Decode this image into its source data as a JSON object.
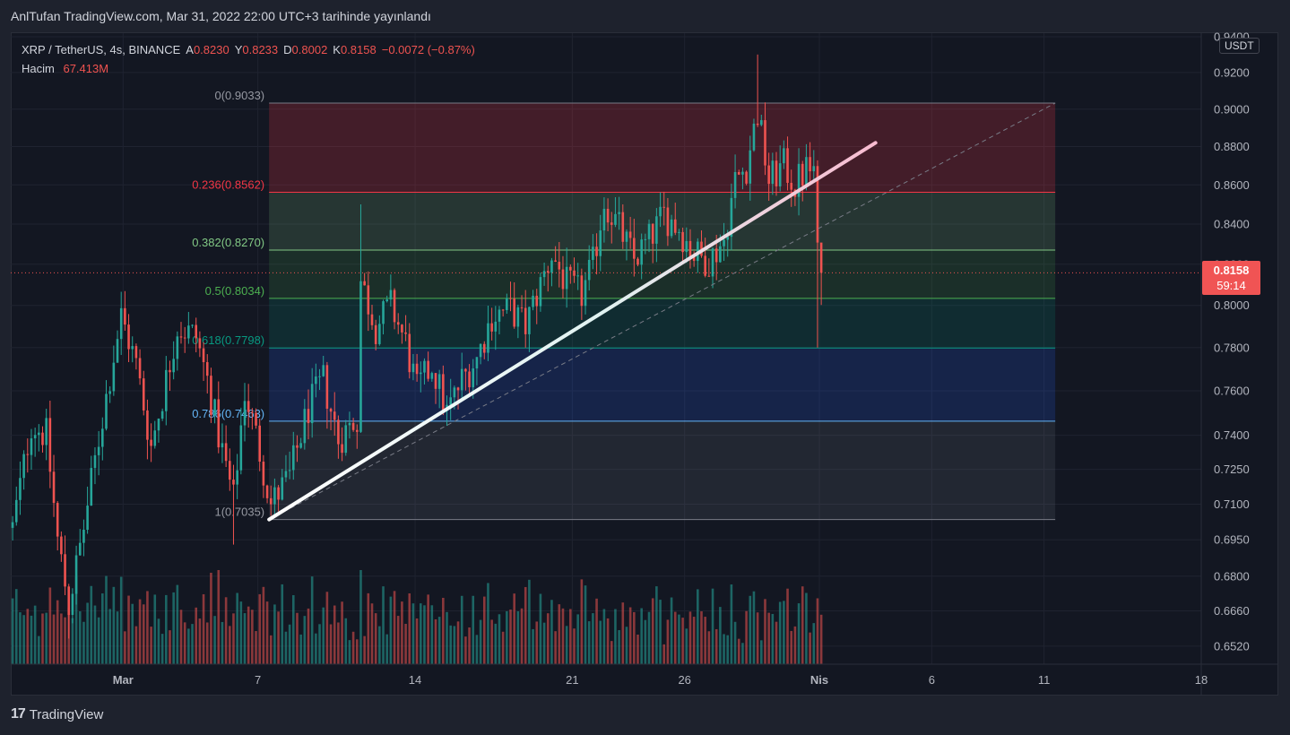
{
  "header": {
    "title": "AnlTufan TradingView.com, Mar 31, 2022 22:00 UTC+3 tarihinde yayınlandı"
  },
  "legend": {
    "symbol": "XRP / TetherUS, 4s, BINANCE",
    "open_label": "A",
    "open": "0.8230",
    "high_label": "Y",
    "high": "0.8233",
    "low_label": "D",
    "low": "0.8002",
    "close_label": "K",
    "close": "0.8158",
    "change": "−0.0072 (−0.87%)",
    "volume_label": "Hacim",
    "volume": "67.413M"
  },
  "currency_badge": "USDT",
  "last_price": {
    "price": "0.8158",
    "countdown": "59:14"
  },
  "footer": {
    "brand": "TradingView"
  },
  "colors": {
    "up": "#26a69a",
    "down": "#ef5350",
    "background": "#131722",
    "frame": "#1e222d"
  },
  "chart_data": {
    "type": "candlestick",
    "title": "XRP / TetherUS, 4s, BINANCE",
    "y_axis_ticks": [
      "0.9400",
      "0.9200",
      "0.9000",
      "0.8800",
      "0.8600",
      "0.8400",
      "0.8200",
      "0.8000",
      "0.7800",
      "0.7600",
      "0.7400",
      "0.7250",
      "0.7100",
      "0.6950",
      "0.6800",
      "0.6660",
      "0.6520"
    ],
    "y_axis_scale": "log",
    "ylim": [
      0.645,
      0.942
    ],
    "x_axis_ticks": [
      "Mar",
      "7",
      "14",
      "21",
      "26",
      "Nis",
      "6",
      "11",
      "18"
    ],
    "x_range": [
      "2022-02-24",
      "2022-04-18"
    ],
    "fibonacci_levels": [
      {
        "label": "0(0.9033)",
        "ratio": 0,
        "price": 0.9033
      },
      {
        "label": "0.236(0.8562)",
        "ratio": 0.236,
        "price": 0.8562
      },
      {
        "label": "0.382(0.8270)",
        "ratio": 0.382,
        "price": 0.827
      },
      {
        "label": "0.5(0.8034)",
        "ratio": 0.5,
        "price": 0.8034
      },
      {
        "label": "0.618(0.7798)",
        "ratio": 0.618,
        "price": 0.7798
      },
      {
        "label": "0.786(0.7463)",
        "ratio": 0.786,
        "price": 0.7463
      },
      {
        "label": "1(0.7035)",
        "ratio": 1,
        "price": 0.7035
      }
    ],
    "fib_x_range": [
      "2022-03-07 12:00",
      "2022-04-11 12:00"
    ],
    "trendline": {
      "from": [
        "2022-03-07 12:00",
        0.7035
      ],
      "to": [
        "2022-04-03 12:00",
        0.882
      ]
    },
    "dashed_diagonal": {
      "from": [
        "2022-03-07 12:00",
        0.7035
      ],
      "to": [
        "2022-04-11 12:00",
        0.9033
      ]
    },
    "last_close": 0.8158,
    "ohlc_keypoints": [
      {
        "t": "2022-02-24 00:00",
        "c": 0.7
      },
      {
        "t": "2022-02-24 20:00",
        "c": 0.745
      },
      {
        "t": "2022-02-25 12:00",
        "c": 0.74
      },
      {
        "t": "2022-02-26 00:00",
        "c": 0.695
      },
      {
        "t": "2022-02-26 12:00",
        "c": 0.668
      },
      {
        "t": "2022-02-27 04:00",
        "c": 0.7
      },
      {
        "t": "2022-02-28 00:00",
        "c": 0.748
      },
      {
        "t": "2022-02-28 20:00",
        "c": 0.795
      },
      {
        "t": "2022-03-01 12:00",
        "c": 0.772
      },
      {
        "t": "2022-03-02 04:00",
        "c": 0.735
      },
      {
        "t": "2022-03-02 20:00",
        "c": 0.765
      },
      {
        "t": "2022-03-03 08:00",
        "c": 0.79
      },
      {
        "t": "2022-03-04 04:00",
        "c": 0.785
      },
      {
        "t": "2022-03-04 16:00",
        "c": 0.765
      },
      {
        "t": "2022-03-05 04:00",
        "c": 0.74
      },
      {
        "t": "2022-03-05 20:00",
        "c": 0.712
      },
      {
        "t": "2022-03-06 08:00",
        "c": 0.76
      },
      {
        "t": "2022-03-06 20:00",
        "c": 0.74
      },
      {
        "t": "2022-03-07 12:00",
        "c": 0.71
      },
      {
        "t": "2022-03-08 08:00",
        "c": 0.722
      },
      {
        "t": "2022-03-09 04:00",
        "c": 0.752
      },
      {
        "t": "2022-03-09 20:00",
        "c": 0.765
      },
      {
        "t": "2022-03-10 12:00",
        "c": 0.738
      },
      {
        "t": "2022-03-11 08:00",
        "c": 0.748
      },
      {
        "t": "2022-03-11 12:00",
        "c": 0.812
      },
      {
        "t": "2022-03-12 04:00",
        "c": 0.79
      },
      {
        "t": "2022-03-12 20:00",
        "c": 0.8
      },
      {
        "t": "2022-03-13 12:00",
        "c": 0.782
      },
      {
        "t": "2022-03-14 00:00",
        "c": 0.76
      },
      {
        "t": "2022-03-14 16:00",
        "c": 0.772
      },
      {
        "t": "2022-03-15 08:00",
        "c": 0.75
      },
      {
        "t": "2022-03-16 00:00",
        "c": 0.765
      },
      {
        "t": "2022-03-16 16:00",
        "c": 0.775
      },
      {
        "t": "2022-03-17 08:00",
        "c": 0.795
      },
      {
        "t": "2022-03-18 04:00",
        "c": 0.798
      },
      {
        "t": "2022-03-18 20:00",
        "c": 0.79
      },
      {
        "t": "2022-03-19 12:00",
        "c": 0.81
      },
      {
        "t": "2022-03-20 00:00",
        "c": 0.825
      },
      {
        "t": "2022-03-20 16:00",
        "c": 0.81
      },
      {
        "t": "2022-03-21 08:00",
        "c": 0.805
      },
      {
        "t": "2022-03-21 20:00",
        "c": 0.82
      },
      {
        "t": "2022-03-22 08:00",
        "c": 0.852
      },
      {
        "t": "2022-03-23 00:00",
        "c": 0.838
      },
      {
        "t": "2022-03-23 16:00",
        "c": 0.822
      },
      {
        "t": "2022-03-24 08:00",
        "c": 0.832
      },
      {
        "t": "2022-03-25 00:00",
        "c": 0.845
      },
      {
        "t": "2022-03-25 16:00",
        "c": 0.838
      },
      {
        "t": "2022-03-26 08:00",
        "c": 0.825
      },
      {
        "t": "2022-03-27 00:00",
        "c": 0.822
      },
      {
        "t": "2022-03-27 16:00",
        "c": 0.832
      },
      {
        "t": "2022-03-28 04:00",
        "c": 0.862
      },
      {
        "t": "2022-03-28 16:00",
        "c": 0.87
      },
      {
        "t": "2022-03-29 04:00",
        "c": 0.898
      },
      {
        "t": "2022-03-29 16:00",
        "c": 0.862
      },
      {
        "t": "2022-03-30 08:00",
        "c": 0.87
      },
      {
        "t": "2022-03-30 20:00",
        "c": 0.86
      },
      {
        "t": "2022-03-31 08:00",
        "c": 0.868
      },
      {
        "t": "2022-03-31 16:00",
        "c": 0.868
      },
      {
        "t": "2022-03-31 20:00",
        "c": 0.823
      },
      {
        "t": "2022-04-01 00:00",
        "c": 0.8158
      }
    ],
    "volume_scale_max": 100
  }
}
